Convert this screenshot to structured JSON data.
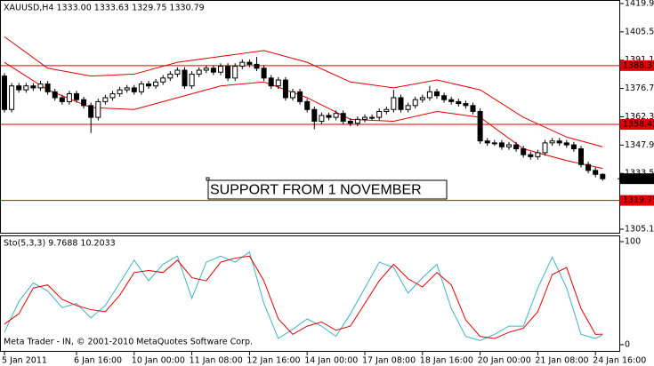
{
  "chart_data": [
    {
      "type": "candlestick",
      "title": "XAUUSD,H4 1333.00 1333.63 1329.75 1330.79",
      "annotation": "SUPPORT FROM 1 NOVEMBER",
      "categories": [
        "5 Jan 2011",
        null,
        null,
        null,
        null,
        null,
        null,
        null,
        null,
        null,
        "6 Jan 16:00",
        null,
        null,
        null,
        null,
        null,
        null,
        null,
        "10 Jan 00:00",
        null,
        null,
        null,
        null,
        null,
        null,
        null,
        "11 Jan 08:00",
        null,
        null,
        null,
        null,
        null,
        null,
        null,
        "12 Jan 16:00",
        null,
        null,
        null,
        null,
        null,
        null,
        null,
        "14 Jan 00:00",
        null,
        null,
        null,
        null,
        null,
        null,
        null,
        "17 Jan 08:00",
        null,
        null,
        null,
        null,
        null,
        null,
        null,
        "18 Jan 16:00",
        null,
        null,
        null,
        null,
        null,
        null,
        null,
        "20 Jan 00:00",
        null,
        null,
        null,
        null,
        null,
        null,
        null,
        "21 Jan 08:00",
        null,
        null,
        null,
        null,
        null,
        null,
        null,
        "24 Jan 16:00",
        null
      ],
      "open": [
        1383,
        1366,
        1378,
        1376,
        1378,
        1377,
        1379,
        1375,
        1372,
        1370,
        1374,
        1371,
        1368,
        1362,
        1370,
        1372,
        1374,
        1376,
        1377,
        1375,
        1379,
        1378,
        1380,
        1382,
        1384,
        1386,
        1378,
        1384,
        1386,
        1387,
        1385,
        1388,
        1382,
        1388,
        1390,
        1389,
        1387,
        1382,
        1378,
        1381,
        1372,
        1375,
        1370,
        1366,
        1360,
        1363,
        1362,
        1364,
        1360,
        1359,
        1361,
        1362,
        1362,
        1365,
        1366,
        1372,
        1366,
        1368,
        1371,
        1372,
        1375,
        1373,
        1371,
        1370,
        1369,
        1368,
        1365,
        1350,
        1349,
        1349,
        1347,
        1348,
        1346,
        1343,
        1342,
        1344,
        1349,
        1350,
        1349,
        1348,
        1346,
        1338,
        1335,
        1333
      ],
      "high": [
        1384.5,
        1379.5,
        1379.5,
        1379.5,
        1379.5,
        1380.5,
        1380.5,
        1376.5,
        1373.5,
        1375.5,
        1375.5,
        1372.5,
        1369.5,
        1371.5,
        1373.5,
        1375.5,
        1377.5,
        1378.5,
        1378.5,
        1380.5,
        1380.5,
        1381.5,
        1383.5,
        1385.5,
        1387.5,
        1387.5,
        1385.5,
        1387.5,
        1388.5,
        1388.5,
        1389.5,
        1389.5,
        1389.5,
        1391.5,
        1391.5,
        1392.8,
        1388.5,
        1383.5,
        1382.5,
        1382.5,
        1376.5,
        1376.5,
        1371.5,
        1367.5,
        1364.5,
        1364.5,
        1365.5,
        1365.5,
        1361.5,
        1362.5,
        1363.5,
        1363.5,
        1366.5,
        1367.5,
        1376,
        1373.5,
        1369.5,
        1372.5,
        1373.5,
        1378,
        1376.5,
        1374.5,
        1372.5,
        1371.5,
        1370.5,
        1369.5,
        1366.5,
        1351.5,
        1350.5,
        1350.5,
        1349.5,
        1349.5,
        1347.5,
        1344.5,
        1345.5,
        1350.5,
        1351.5,
        1351.5,
        1350.5,
        1349.5,
        1347.5,
        1339.5,
        1336.5,
        1333.63
      ],
      "low": [
        1364.5,
        1364.5,
        1374.5,
        1374.5,
        1375.5,
        1375.5,
        1373.5,
        1370.5,
        1368.5,
        1368.5,
        1369.5,
        1366.5,
        1354,
        1360.5,
        1368.5,
        1370.5,
        1372.5,
        1374.5,
        1373.5,
        1373.5,
        1376.5,
        1376.5,
        1378.5,
        1380.5,
        1382.5,
        1376.5,
        1376.5,
        1382.5,
        1384.5,
        1383.5,
        1383.5,
        1380.5,
        1380.5,
        1386.5,
        1387.5,
        1385.5,
        1380.5,
        1376.5,
        1376.5,
        1370.5,
        1370.5,
        1368.5,
        1364.5,
        1356,
        1358.5,
        1360.5,
        1360.5,
        1358.5,
        1357.5,
        1357.5,
        1359.5,
        1360.5,
        1360.5,
        1363.5,
        1364.5,
        1364.5,
        1364.5,
        1366.5,
        1369.5,
        1370.5,
        1371.5,
        1369.5,
        1368.5,
        1367.5,
        1366.5,
        1363.5,
        1348.5,
        1347.5,
        1347.5,
        1345.5,
        1345.5,
        1344.5,
        1341.5,
        1340.5,
        1340.5,
        1342.5,
        1347.5,
        1347.5,
        1346.5,
        1344.5,
        1336.5,
        1333.5,
        1331.5,
        1329.75
      ],
      "close": [
        1366,
        1378,
        1376,
        1378,
        1377,
        1379,
        1375,
        1372,
        1370,
        1374,
        1371,
        1368,
        1362,
        1370,
        1372,
        1374,
        1376,
        1377,
        1375,
        1379,
        1378,
        1380,
        1382,
        1384,
        1386,
        1378,
        1384,
        1386,
        1387,
        1385,
        1388,
        1382,
        1388,
        1390,
        1389,
        1387,
        1382,
        1378,
        1381,
        1372,
        1375,
        1370,
        1366,
        1360,
        1363,
        1362,
        1364,
        1360,
        1359,
        1361,
        1362,
        1362,
        1365,
        1366,
        1372,
        1366,
        1368,
        1371,
        1372,
        1375,
        1373,
        1371,
        1370,
        1369,
        1368,
        1365,
        1350,
        1349,
        1349,
        1347,
        1348,
        1346,
        1343,
        1342,
        1344,
        1349,
        1350,
        1349,
        1348,
        1346,
        1338,
        1335,
        1333,
        1330.79
      ],
      "series": [
        {
          "color": "#e00000",
          "x": [
            0,
            6,
            12,
            18,
            24,
            30,
            36,
            42,
            48,
            54,
            60,
            66,
            72,
            78,
            83
          ],
          "values": [
            1403,
            1387,
            1383,
            1384,
            1390,
            1393,
            1396,
            1390,
            1380,
            1377,
            1381,
            1376,
            1362,
            1352,
            1347
          ]
        },
        {
          "color": "#e00000",
          "x": [
            0,
            6,
            12,
            18,
            24,
            30,
            36,
            42,
            48,
            54,
            60,
            66,
            72,
            78,
            83
          ],
          "values": [
            1390,
            1376,
            1367,
            1366,
            1372,
            1378,
            1380,
            1372,
            1361,
            1360,
            1365,
            1362,
            1346,
            1340,
            1336
          ]
        }
      ],
      "hlines": [
        {
          "value": 1388.33,
          "label": "1388.33"
        },
        {
          "value": 1358.42,
          "label": "1358.42"
        },
        {
          "value": 1319.75,
          "label": "1319.75"
        }
      ],
      "hline_color": "#e00000",
      "price_label": {
        "value": 1330.79,
        "label": "1330.79"
      },
      "ylim": [
        1305.1,
        1419.9
      ],
      "yticks": [
        {
          "value": 1419.9,
          "label": "1419.90"
        },
        {
          "value": 1405.5,
          "label": "1405.50"
        },
        {
          "value": 1391.1,
          "label": "1391.10"
        },
        {
          "value": 1376.7,
          "label": "1376.70"
        },
        {
          "value": 1362.3,
          "label": "1362.30"
        },
        {
          "value": 1347.9,
          "label": "1347.90"
        },
        {
          "value": 1333.5,
          "label": "1333.50"
        },
        {
          "value": 1305.1,
          "label": "1305.10"
        }
      ]
    },
    {
      "type": "line",
      "title": "Sto(5,3,3) 9.7688 10.2033",
      "annotation": "Meta Trader - IN, © 2001-2010 MetaQuotes Software Corp.",
      "series": [
        {
          "color": "#3fb0c8",
          "x": [
            0,
            2,
            4,
            6,
            8,
            10,
            12,
            14,
            16,
            18,
            20,
            22,
            24,
            26,
            28,
            30,
            32,
            34,
            36,
            38,
            40,
            42,
            44,
            46,
            48,
            50,
            52,
            54,
            56,
            58,
            60,
            62,
            64,
            66,
            68,
            70,
            72,
            74,
            76,
            78,
            80,
            82,
            83
          ],
          "values": [
            12,
            42,
            60,
            52,
            36,
            40,
            26,
            38,
            60,
            82,
            62,
            78,
            86,
            45,
            80,
            86,
            80,
            90,
            40,
            6,
            15,
            25,
            18,
            8,
            30,
            55,
            80,
            75,
            50,
            65,
            78,
            35,
            8,
            4,
            10,
            18,
            18,
            55,
            85,
            55,
            10,
            6,
            9.7688
          ]
        },
        {
          "color": "#e00000",
          "x": [
            0,
            2,
            4,
            6,
            8,
            10,
            12,
            14,
            16,
            18,
            20,
            22,
            24,
            26,
            28,
            30,
            32,
            34,
            36,
            38,
            40,
            42,
            44,
            46,
            48,
            50,
            52,
            54,
            56,
            58,
            60,
            62,
            64,
            66,
            68,
            70,
            72,
            74,
            76,
            78,
            80,
            82,
            83
          ],
          "values": [
            20,
            30,
            55,
            58,
            44,
            38,
            34,
            32,
            48,
            70,
            72,
            70,
            82,
            65,
            62,
            80,
            84,
            86,
            62,
            25,
            10,
            18,
            22,
            14,
            18,
            40,
            62,
            78,
            64,
            56,
            70,
            58,
            24,
            8,
            6,
            12,
            16,
            32,
            68,
            75,
            35,
            10,
            10.2033
          ]
        }
      ],
      "ylim": [
        0,
        100
      ],
      "yticks": [
        100,
        0
      ]
    }
  ]
}
